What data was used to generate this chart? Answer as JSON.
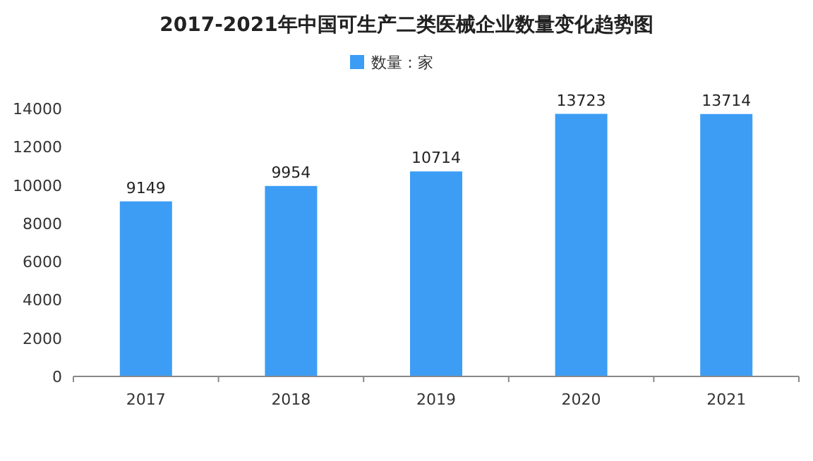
{
  "chart_data": {
    "type": "bar",
    "title": "2017-2021年中国可生产二类医械企业数量变化趋势图",
    "categories": [
      "2017",
      "2018",
      "2019",
      "2020",
      "2021"
    ],
    "series": [
      {
        "name": "数量：家",
        "color": "#3d9df5",
        "values": [
          9149,
          9954,
          10714,
          13723,
          13714
        ]
      }
    ],
    "ylim": [
      0,
      14000
    ],
    "yticks": [
      0,
      2000,
      4000,
      6000,
      8000,
      10000,
      12000,
      14000
    ],
    "data_labels": true,
    "legend": "top"
  }
}
